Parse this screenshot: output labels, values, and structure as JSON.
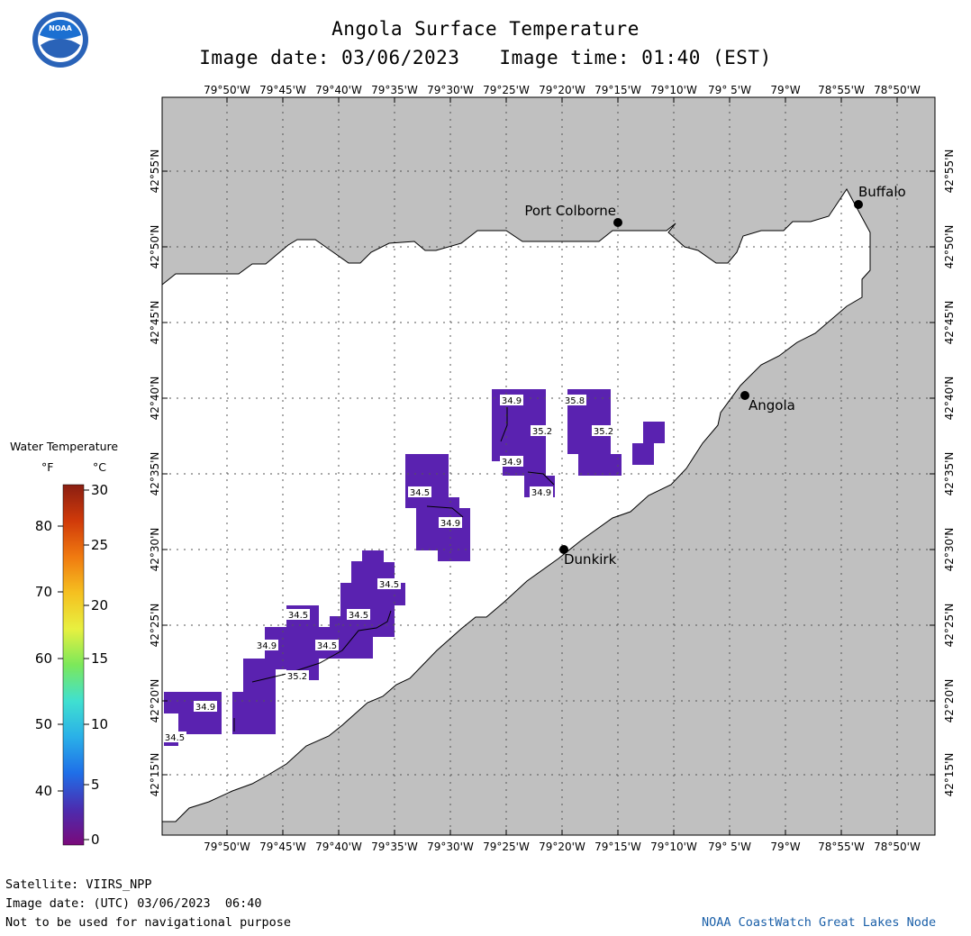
{
  "header": {
    "title": "Angola Surface Temperature",
    "image_date_label": "Image date: 03/06/2023",
    "image_time_label": "Image time: 01:40 (EST)"
  },
  "logo": {
    "text": "NOAA",
    "colors": {
      "outer": "#2a63b8",
      "inner": "#ffffff",
      "sky": "#1b6fd1"
    }
  },
  "map": {
    "colors": {
      "land": "#c0c0c0",
      "water": "#ffffff",
      "grid": "#555555",
      "coast": "#000000",
      "data_fill": "#5a22b0"
    },
    "longitude_labels": [
      "79°50'W",
      "79°45'W",
      "79°40'W",
      "79°35'W",
      "79°30'W",
      "79°25'W",
      "79°20'W",
      "79°15'W",
      "79°10'W",
      "79° 5'W",
      "79°W",
      "78°55'W",
      "78°50'W"
    ],
    "latitude_labels": [
      "42°55'N",
      "42°50'N",
      "42°45'N",
      "42°40'N",
      "42°35'N",
      "42°30'N",
      "42°25'N",
      "42°20'N",
      "42°15'N"
    ],
    "cities": [
      {
        "name": "Port Colborne",
        "lon": "79°15'W",
        "lat": "42°51'N"
      },
      {
        "name": "Buffalo",
        "lon": "78°53'W",
        "lat": "42°53'N"
      },
      {
        "name": "Angola",
        "lon": "79°3'W",
        "lat": "42°40'N"
      },
      {
        "name": "Dunkirk",
        "lon": "79°20'W",
        "lat": "42°30'N"
      }
    ],
    "temperature_labels": [
      "34.9",
      "35.2",
      "34.9",
      "34.9",
      "35.8",
      "35.2",
      "34.5",
      "34.9",
      "34.5",
      "34.5",
      "34.5",
      "34.9",
      "34.5",
      "35.2",
      "34.9",
      "34.5"
    ]
  },
  "legend": {
    "title": "Water Temperature",
    "unit_f": "°F",
    "unit_c": "°C",
    "f_ticks": [
      "80",
      "70",
      "60",
      "50",
      "40"
    ],
    "c_ticks": [
      "30",
      "25",
      "20",
      "15",
      "10",
      "5",
      "0"
    ],
    "colorbar": [
      "#7a0a7a",
      "#4b2db0",
      "#1f6fe8",
      "#2ab0e8",
      "#40e0d0",
      "#7ce85a",
      "#e8f040",
      "#f5c020",
      "#f07a10",
      "#d03a0a",
      "#8a1e12"
    ]
  },
  "footer": {
    "satellite": "Satellite: VIIRS_NPP",
    "utc_date": "Image date: (UTC) 03/06/2023  06:40",
    "disclaimer": "Not to be used for navigational purpose",
    "source": "NOAA CoastWatch Great Lakes Node"
  }
}
